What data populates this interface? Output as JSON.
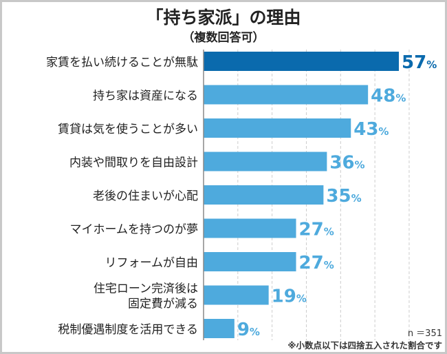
{
  "chart_data": {
    "type": "bar",
    "orientation": "horizontal",
    "title": "「持ち家派」の理由",
    "subtitle": "（複数回答可）",
    "categories": [
      [
        "家賃を払い続けることが無駄"
      ],
      [
        "持ち家は資産になる"
      ],
      [
        "賃貸は気を使うことが多い"
      ],
      [
        "内装や間取りを自由設計"
      ],
      [
        "老後の住まいが心配"
      ],
      [
        "マイホームを持つのが夢"
      ],
      [
        "リフォームが自由"
      ],
      [
        "住宅ローン完済後は",
        "固定費が減る"
      ],
      [
        "税制優遇制度を活用できる"
      ]
    ],
    "values": [
      57,
      48,
      43,
      36,
      35,
      27,
      27,
      19,
      9
    ],
    "unit": "%",
    "xlim": [
      0,
      60
    ],
    "grid": true,
    "colors": {
      "highlight": "#0a6aad",
      "bar": "#4eaadd",
      "label_highlight": "#0a6aad",
      "label": "#4eaadd"
    },
    "sample_size": "n ＝351",
    "note": "※小数点以下は四捨五入された割合です"
  }
}
